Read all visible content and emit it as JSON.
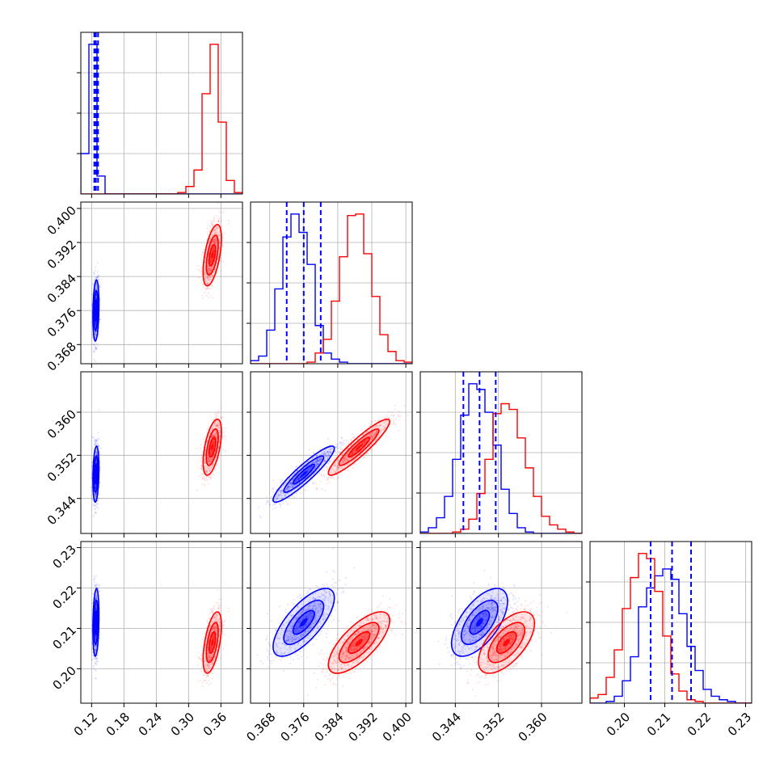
{
  "chart_data": {
    "type": "corner",
    "parameters": 4,
    "colors": {
      "series_a": "#0000ff",
      "series_b": "#ff0000"
    },
    "grid": true,
    "axes": [
      {
        "index": 0,
        "range": [
          0.1,
          0.4
        ],
        "ticks": [
          "0.12",
          "0.18",
          "0.24",
          "0.30",
          "0.36"
        ],
        "tick_values": [
          0.12,
          0.18,
          0.24,
          0.3,
          0.36
        ]
      },
      {
        "index": 1,
        "range": [
          0.3635,
          0.4015
        ],
        "ticks": [
          "0.368",
          "0.376",
          "0.384",
          "0.392",
          "0.400"
        ],
        "tick_values": [
          0.368,
          0.376,
          0.384,
          0.392,
          0.4
        ]
      },
      {
        "index": 2,
        "range": [
          0.3375,
          0.3675
        ],
        "ticks": [
          "0.344",
          "0.352",
          "0.360"
        ],
        "tick_values": [
          0.344,
          0.352,
          0.36
        ]
      },
      {
        "index": 3,
        "range": [
          0.1915,
          0.2315
        ],
        "ticks": [
          "0.20",
          "0.21",
          "0.22",
          "0.23"
        ],
        "tick_values": [
          0.2,
          0.21,
          0.22,
          0.23
        ]
      }
    ],
    "quantiles_series_a": [
      [
        0.125,
        0.128,
        0.132
      ],
      [
        0.372,
        0.376,
        0.38
      ],
      [
        0.3455,
        0.3485,
        0.3515
      ],
      [
        0.2065,
        0.2118,
        0.2165
      ]
    ],
    "series": [
      {
        "color": "#0000ff",
        "centers": [
          0.128,
          0.376,
          0.3485,
          0.2115
        ],
        "sigmas": [
          0.0028,
          0.0036,
          0.0026,
          0.0042
        ],
        "correlations": [
          [
            0,
            1,
            0.2
          ],
          [
            0,
            2,
            0.2
          ],
          [
            0,
            3,
            0.2
          ],
          [
            1,
            2,
            0.92
          ],
          [
            1,
            3,
            0.72
          ],
          [
            2,
            3,
            0.62
          ]
        ],
        "histograms": [
          {
            "edges": [
              0.1,
              0.115,
              0.13,
              0.145,
              0.16,
              0.175,
              0.19,
              0.205,
              0.22,
              0.235,
              0.25,
              0.265,
              0.28,
              0.295,
              0.31,
              0.325,
              0.34,
              0.355,
              0.37,
              0.385,
              0.4
            ],
            "counts": [
              0.27,
              1.0,
              0.12,
              0,
              0,
              0,
              0,
              0,
              0,
              0,
              0,
              0,
              0,
              0,
              0,
              0,
              0,
              0,
              0,
              0
            ]
          },
          {
            "edges": [
              0.3635,
              0.3654,
              0.3673,
              0.3692,
              0.3711,
              0.373,
              0.3749,
              0.3768,
              0.3787,
              0.3806,
              0.3825,
              0.3844,
              0.3863,
              0.3882,
              0.3901,
              0.392,
              0.3939,
              0.3958,
              0.3977,
              0.3996,
              0.4015
            ],
            "counts": [
              0.02,
              0.05,
              0.22,
              0.49,
              0.83,
              0.98,
              0.86,
              0.65,
              0.25,
              0.07,
              0.03,
              0.01,
              0,
              0,
              0,
              0,
              0,
              0,
              0,
              0
            ]
          },
          {
            "edges": [
              0.3375,
              0.339,
              0.3405,
              0.342,
              0.3435,
              0.345,
              0.3465,
              0.348,
              0.3495,
              0.351,
              0.3525,
              0.354,
              0.3555,
              0.357,
              0.3585,
              0.36,
              0.3615,
              0.363,
              0.3645,
              0.366,
              0.3675
            ],
            "counts": [
              0.01,
              0.04,
              0.11,
              0.26,
              0.52,
              0.83,
              1.05,
              1.01,
              0.85,
              0.62,
              0.31,
              0.14,
              0.04,
              0.01,
              0,
              0,
              0,
              0,
              0,
              0
            ]
          },
          {
            "edges": [
              0.1915,
              0.1935,
              0.1955,
              0.1975,
              0.1995,
              0.2015,
              0.2035,
              0.2055,
              0.2075,
              0.2095,
              0.2115,
              0.2135,
              0.2155,
              0.2175,
              0.2195,
              0.2215,
              0.2235,
              0.2255,
              0.2275,
              0.2295,
              0.2315
            ],
            "counts": [
              0,
              0,
              0.01,
              0.04,
              0.13,
              0.27,
              0.56,
              0.67,
              0.74,
              0.78,
              0.72,
              0.52,
              0.33,
              0.19,
              0.08,
              0.04,
              0.02,
              0.01,
              0,
              0
            ]
          }
        ]
      },
      {
        "color": "#ff0000",
        "centers": [
          0.344,
          0.389,
          0.3535,
          0.2065
        ],
        "sigmas": [
          0.0085,
          0.0036,
          0.0026,
          0.0038
        ],
        "correlations": [
          [
            0,
            1,
            0.55
          ],
          [
            0,
            2,
            0.55
          ],
          [
            0,
            3,
            0.55
          ],
          [
            1,
            2,
            0.92
          ],
          [
            1,
            3,
            0.72
          ],
          [
            2,
            3,
            0.62
          ]
        ],
        "histograms": [
          {
            "edges": [
              0.1,
              0.115,
              0.13,
              0.145,
              0.16,
              0.175,
              0.19,
              0.205,
              0.22,
              0.235,
              0.25,
              0.265,
              0.28,
              0.295,
              0.31,
              0.325,
              0.34,
              0.355,
              0.37,
              0.385,
              0.4
            ],
            "counts": [
              0,
              0,
              0,
              0,
              0,
              0,
              0,
              0,
              0,
              0,
              0,
              0,
              0.01,
              0.05,
              0.16,
              0.67,
              1.0,
              0.48,
              0.09,
              0.01
            ]
          },
          {
            "edges": [
              0.3635,
              0.3654,
              0.3673,
              0.3692,
              0.3711,
              0.373,
              0.3749,
              0.3768,
              0.3787,
              0.3806,
              0.3825,
              0.3844,
              0.3863,
              0.3882,
              0.3901,
              0.392,
              0.3939,
              0.3958,
              0.3977,
              0.3996,
              0.4015
            ],
            "counts": [
              0,
              0,
              0,
              0,
              0,
              0,
              0,
              0.01,
              0.07,
              0.16,
              0.41,
              0.7,
              0.97,
              0.98,
              0.72,
              0.44,
              0.19,
              0.08,
              0.02,
              0.01
            ]
          },
          {
            "edges": [
              0.3375,
              0.339,
              0.3405,
              0.342,
              0.3435,
              0.345,
              0.3465,
              0.348,
              0.3495,
              0.351,
              0.3525,
              0.354,
              0.3555,
              0.357,
              0.3585,
              0.36,
              0.3615,
              0.363,
              0.3645,
              0.366,
              0.3675
            ],
            "counts": [
              0,
              0,
              0,
              0,
              0.01,
              0.03,
              0.1,
              0.28,
              0.52,
              0.84,
              0.91,
              0.87,
              0.67,
              0.46,
              0.26,
              0.12,
              0.06,
              0.03,
              0.01,
              0
            ]
          },
          {
            "edges": [
              0.1915,
              0.1935,
              0.1955,
              0.1975,
              0.1995,
              0.2015,
              0.2035,
              0.2055,
              0.2075,
              0.2095,
              0.2115,
              0.2135,
              0.2155,
              0.2175,
              0.2195,
              0.2215,
              0.2235,
              0.2255,
              0.2275,
              0.2295,
              0.2315
            ],
            "counts": [
              0.03,
              0.05,
              0.15,
              0.31,
              0.55,
              0.73,
              0.87,
              0.84,
              0.65,
              0.39,
              0.17,
              0.07,
              0.02,
              0.01,
              0,
              0,
              0,
              0,
              0,
              0
            ]
          }
        ]
      }
    ]
  }
}
